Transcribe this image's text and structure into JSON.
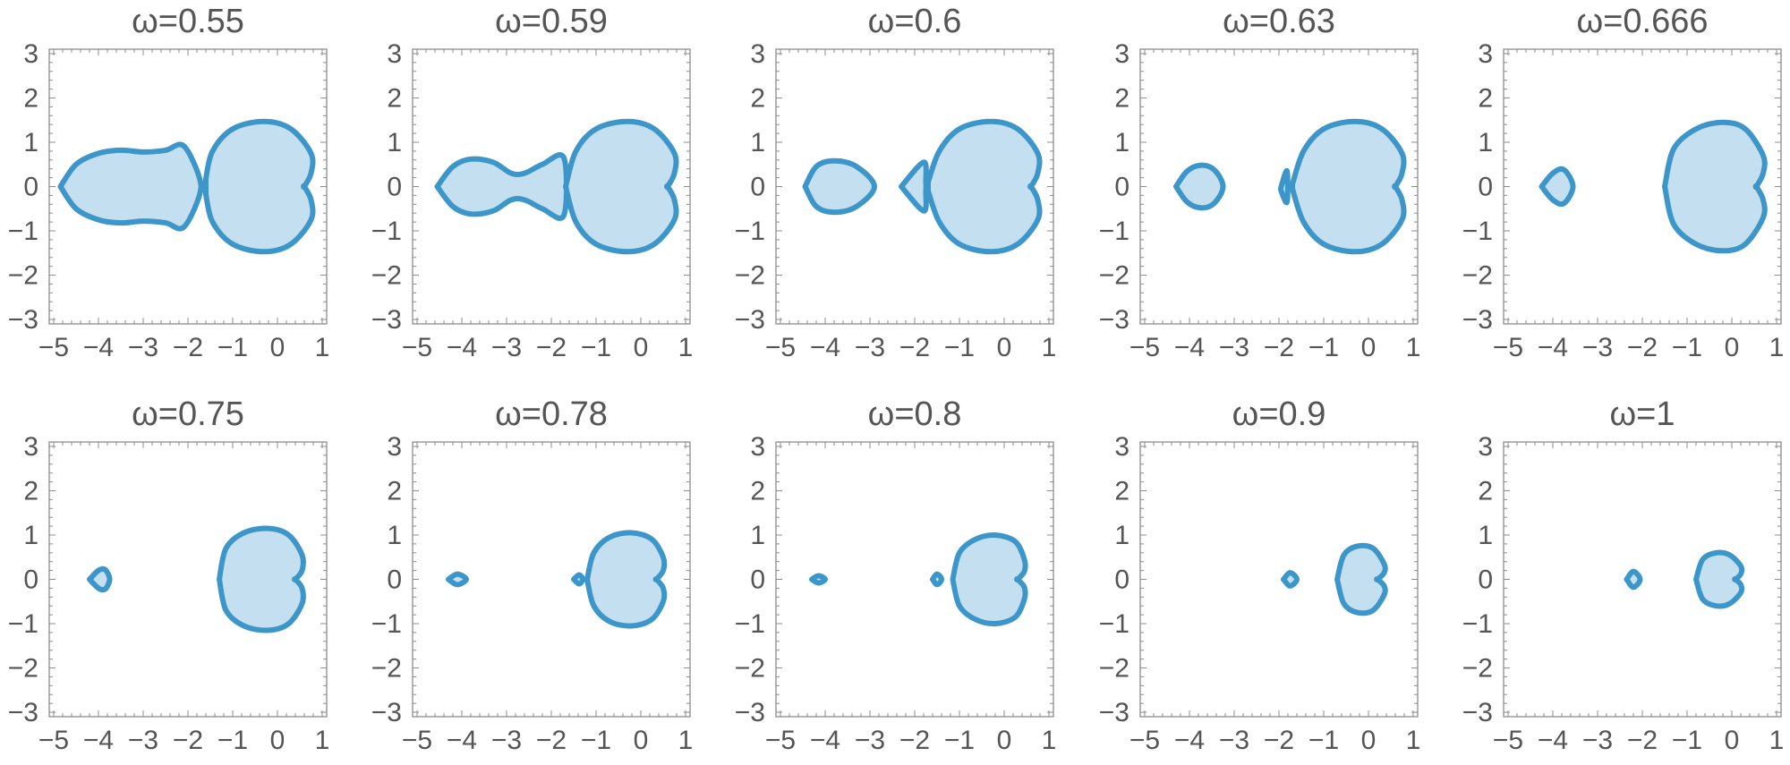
{
  "figure": {
    "x_ticks": [
      -5,
      -4,
      -3,
      -2,
      -1,
      0,
      1
    ],
    "y_ticks": [
      -3,
      -2,
      -1,
      0,
      1,
      2,
      3
    ],
    "xlim": [
      -5.1,
      1.1
    ],
    "ylim": [
      -3.1,
      3.1
    ],
    "colors": {
      "stroke": "#3d96c9",
      "fill": "#c4dfef",
      "frame": "#8c8c8c",
      "text": "#555555"
    }
  },
  "chart_data": [
    {
      "type": "area",
      "title": "ω=0.55",
      "regions": [
        {
          "x": [
            -4.85,
            -4.5,
            -4.0,
            -3.5,
            -3.0,
            -2.5,
            -2.1,
            -1.75,
            -1.75,
            -2.1,
            -2.5,
            -3.0,
            -3.5,
            -4.0,
            -4.5,
            -4.85
          ],
          "y": [
            0,
            0.5,
            0.75,
            0.82,
            0.78,
            0.82,
            0.92,
            0.22,
            -0.22,
            -0.92,
            -0.82,
            -0.78,
            -0.82,
            -0.75,
            -0.5,
            0
          ]
        },
        {
          "x": [
            -1.6,
            -1.45,
            -1.0,
            -0.3,
            0.3,
            0.75,
            0.75,
            0.6,
            0.6,
            0.75,
            0.75,
            0.3,
            -0.3,
            -1.0,
            -1.45,
            -1.6
          ],
          "y": [
            0.18,
            0.8,
            1.3,
            1.47,
            1.3,
            0.75,
            0.3,
            0,
            0,
            -0.3,
            -0.75,
            -1.3,
            -1.47,
            -1.3,
            -0.8,
            -0.18
          ]
        }
      ]
    },
    {
      "type": "area",
      "title": "ω=0.59",
      "regions": [
        {
          "x": [
            -4.55,
            -4.2,
            -3.8,
            -3.3,
            -2.9,
            -2.6,
            -2.2,
            -1.72,
            -1.72,
            -2.2,
            -2.6,
            -2.9,
            -3.3,
            -3.8,
            -4.2,
            -4.55
          ],
          "y": [
            0,
            0.45,
            0.62,
            0.55,
            0.3,
            0.3,
            0.5,
            0.65,
            -0.65,
            -0.5,
            -0.3,
            -0.3,
            -0.55,
            -0.62,
            -0.45,
            0
          ]
        },
        {
          "x": [
            -1.68,
            -1.45,
            -1.0,
            -0.3,
            0.3,
            0.75,
            0.75,
            0.6,
            0.6,
            0.75,
            0.75,
            0.3,
            -0.3,
            -1.0,
            -1.45,
            -1.68
          ],
          "y": [
            0,
            0.8,
            1.3,
            1.47,
            1.3,
            0.75,
            0.3,
            0,
            0,
            -0.3,
            -0.75,
            -1.3,
            -1.47,
            -1.3,
            -0.8,
            0
          ]
        }
      ]
    },
    {
      "type": "area",
      "title": "ω=0.6",
      "regions": [
        {
          "x": [
            -4.45,
            -4.2,
            -3.8,
            -3.3,
            -2.9,
            -3.3,
            -3.8,
            -4.2,
            -4.45
          ],
          "y": [
            0,
            0.45,
            0.58,
            0.45,
            0,
            -0.45,
            -0.58,
            -0.45,
            0
          ]
        },
        {
          "x": [
            -2.3,
            -1.8,
            -1.75,
            -1.75,
            -1.8,
            -2.3
          ],
          "y": [
            0,
            0.55,
            0.1,
            -0.1,
            -0.55,
            0
          ]
        },
        {
          "x": [
            -1.7,
            -1.45,
            -1.0,
            -0.3,
            0.3,
            0.75,
            0.75,
            0.6,
            0.6,
            0.75,
            0.75,
            0.3,
            -0.3,
            -1.0,
            -1.45,
            -1.7
          ],
          "y": [
            0.1,
            0.8,
            1.3,
            1.47,
            1.3,
            0.75,
            0.3,
            0,
            0,
            -0.3,
            -0.75,
            -1.3,
            -1.47,
            -1.3,
            -0.8,
            -0.1
          ]
        }
      ]
    },
    {
      "type": "area",
      "title": "ω=0.63",
      "regions": [
        {
          "x": [
            -4.3,
            -4.05,
            -3.75,
            -3.45,
            -3.25,
            -3.45,
            -3.75,
            -4.05,
            -4.3
          ],
          "y": [
            0,
            0.35,
            0.48,
            0.38,
            0,
            -0.38,
            -0.48,
            -0.35,
            0
          ]
        },
        {
          "x": [
            -1.95,
            -1.82,
            -1.82,
            -1.95,
            -1.95
          ],
          "y": [
            0,
            0.35,
            -0.35,
            -0.1,
            0
          ]
        },
        {
          "x": [
            -1.7,
            -1.45,
            -1.0,
            -0.3,
            0.3,
            0.75,
            0.75,
            0.6,
            0.6,
            0.75,
            0.75,
            0.3,
            -0.3,
            -1.0,
            -1.45,
            -1.7
          ],
          "y": [
            0.05,
            0.8,
            1.3,
            1.47,
            1.3,
            0.75,
            0.3,
            0,
            0,
            -0.3,
            -0.75,
            -1.3,
            -1.47,
            -1.3,
            -0.8,
            -0.05
          ]
        }
      ]
    },
    {
      "type": "area",
      "title": "ω=0.666",
      "regions": [
        {
          "x": [
            -4.25,
            -4.0,
            -3.75,
            -3.55,
            -3.75,
            -4.0,
            -4.25
          ],
          "y": [
            0,
            0.3,
            0.38,
            0,
            -0.38,
            -0.3,
            0
          ]
        },
        {
          "x": [
            -1.5,
            -1.3,
            -0.8,
            -0.2,
            0.3,
            0.7,
            0.7,
            0.55,
            0.55,
            0.7,
            0.7,
            0.3,
            -0.2,
            -0.8,
            -1.3,
            -1.5
          ],
          "y": [
            0,
            0.85,
            1.3,
            1.45,
            1.3,
            0.7,
            0.3,
            0,
            0,
            -0.3,
            -0.7,
            -1.3,
            -1.45,
            -1.3,
            -0.85,
            0
          ]
        }
      ]
    },
    {
      "type": "area",
      "title": "ω=0.75",
      "regions": [
        {
          "x": [
            -4.2,
            -4.0,
            -3.85,
            -3.75,
            -3.85,
            -4.0,
            -4.2
          ],
          "y": [
            0,
            0.2,
            0.22,
            0,
            -0.22,
            -0.2,
            0
          ]
        },
        {
          "x": [
            -1.3,
            -1.15,
            -0.75,
            -0.2,
            0.25,
            0.55,
            0.55,
            0.4,
            0.4,
            0.55,
            0.55,
            0.25,
            -0.2,
            -0.75,
            -1.15,
            -1.3
          ],
          "y": [
            0,
            0.7,
            1.05,
            1.15,
            1.0,
            0.55,
            0.2,
            0,
            0,
            -0.2,
            -0.55,
            -1.0,
            -1.15,
            -1.05,
            -0.7,
            0
          ]
        }
      ]
    },
    {
      "type": "area",
      "title": "ω=0.78",
      "regions": [
        {
          "x": [
            -4.3,
            -4.1,
            -3.9,
            -4.1,
            -4.3
          ],
          "y": [
            0,
            0.12,
            0,
            -0.12,
            0
          ]
        },
        {
          "x": [
            -1.5,
            -1.38,
            -1.3,
            -1.38,
            -1.5
          ],
          "y": [
            0,
            0.1,
            0,
            -0.1,
            0
          ]
        },
        {
          "x": [
            -1.2,
            -1.05,
            -0.7,
            -0.2,
            0.25,
            0.5,
            0.5,
            0.35,
            0.35,
            0.5,
            0.5,
            0.25,
            -0.2,
            -0.7,
            -1.05,
            -1.2
          ],
          "y": [
            0,
            0.6,
            0.95,
            1.05,
            0.9,
            0.5,
            0.2,
            0,
            0,
            -0.2,
            -0.5,
            -0.9,
            -1.05,
            -0.95,
            -0.6,
            0
          ]
        }
      ]
    },
    {
      "type": "area",
      "title": "ω=0.8",
      "regions": [
        {
          "x": [
            -4.3,
            -4.15,
            -4.0,
            -4.15,
            -4.3
          ],
          "y": [
            0,
            0.08,
            0,
            -0.08,
            0
          ]
        },
        {
          "x": [
            -1.6,
            -1.5,
            -1.4,
            -1.5,
            -1.6
          ],
          "y": [
            0,
            0.12,
            0,
            -0.12,
            0
          ]
        },
        {
          "x": [
            -1.15,
            -1.0,
            -0.65,
            -0.2,
            0.25,
            0.45,
            0.45,
            0.3,
            0.3,
            0.45,
            0.45,
            0.25,
            -0.2,
            -0.65,
            -1.0,
            -1.15
          ],
          "y": [
            0,
            0.6,
            0.9,
            1.0,
            0.85,
            0.45,
            0.18,
            0,
            0,
            -0.18,
            -0.45,
            -0.85,
            -1.0,
            -0.9,
            -0.6,
            0
          ]
        }
      ]
    },
    {
      "type": "area",
      "title": "ω=0.9",
      "regions": [
        {
          "x": [
            -1.9,
            -1.75,
            -1.6,
            -1.75,
            -1.9
          ],
          "y": [
            0,
            0.15,
            0,
            -0.15,
            0
          ]
        },
        {
          "x": [
            -0.7,
            -0.55,
            -0.25,
            0.1,
            0.35,
            0.35,
            0.2,
            0.2,
            0.35,
            0.35,
            0.1,
            -0.25,
            -0.55,
            -0.7
          ],
          "y": [
            0,
            0.55,
            0.75,
            0.7,
            0.35,
            0.15,
            0,
            0,
            -0.15,
            -0.35,
            -0.7,
            -0.75,
            -0.55,
            0
          ]
        }
      ]
    },
    {
      "type": "area",
      "title": "ω=1",
      "regions": [
        {
          "x": [
            -2.35,
            -2.2,
            -2.05,
            -2.2,
            -2.35
          ],
          "y": [
            0,
            0.18,
            0,
            -0.18,
            0
          ]
        },
        {
          "x": [
            -0.8,
            -0.65,
            -0.35,
            -0.05,
            0.2,
            0.2,
            0.08,
            0.08,
            0.2,
            0.2,
            -0.05,
            -0.35,
            -0.65,
            -0.8
          ],
          "y": [
            0,
            0.45,
            0.6,
            0.55,
            0.3,
            0.12,
            0,
            0,
            -0.12,
            -0.3,
            -0.55,
            -0.6,
            -0.45,
            0
          ]
        }
      ]
    }
  ]
}
